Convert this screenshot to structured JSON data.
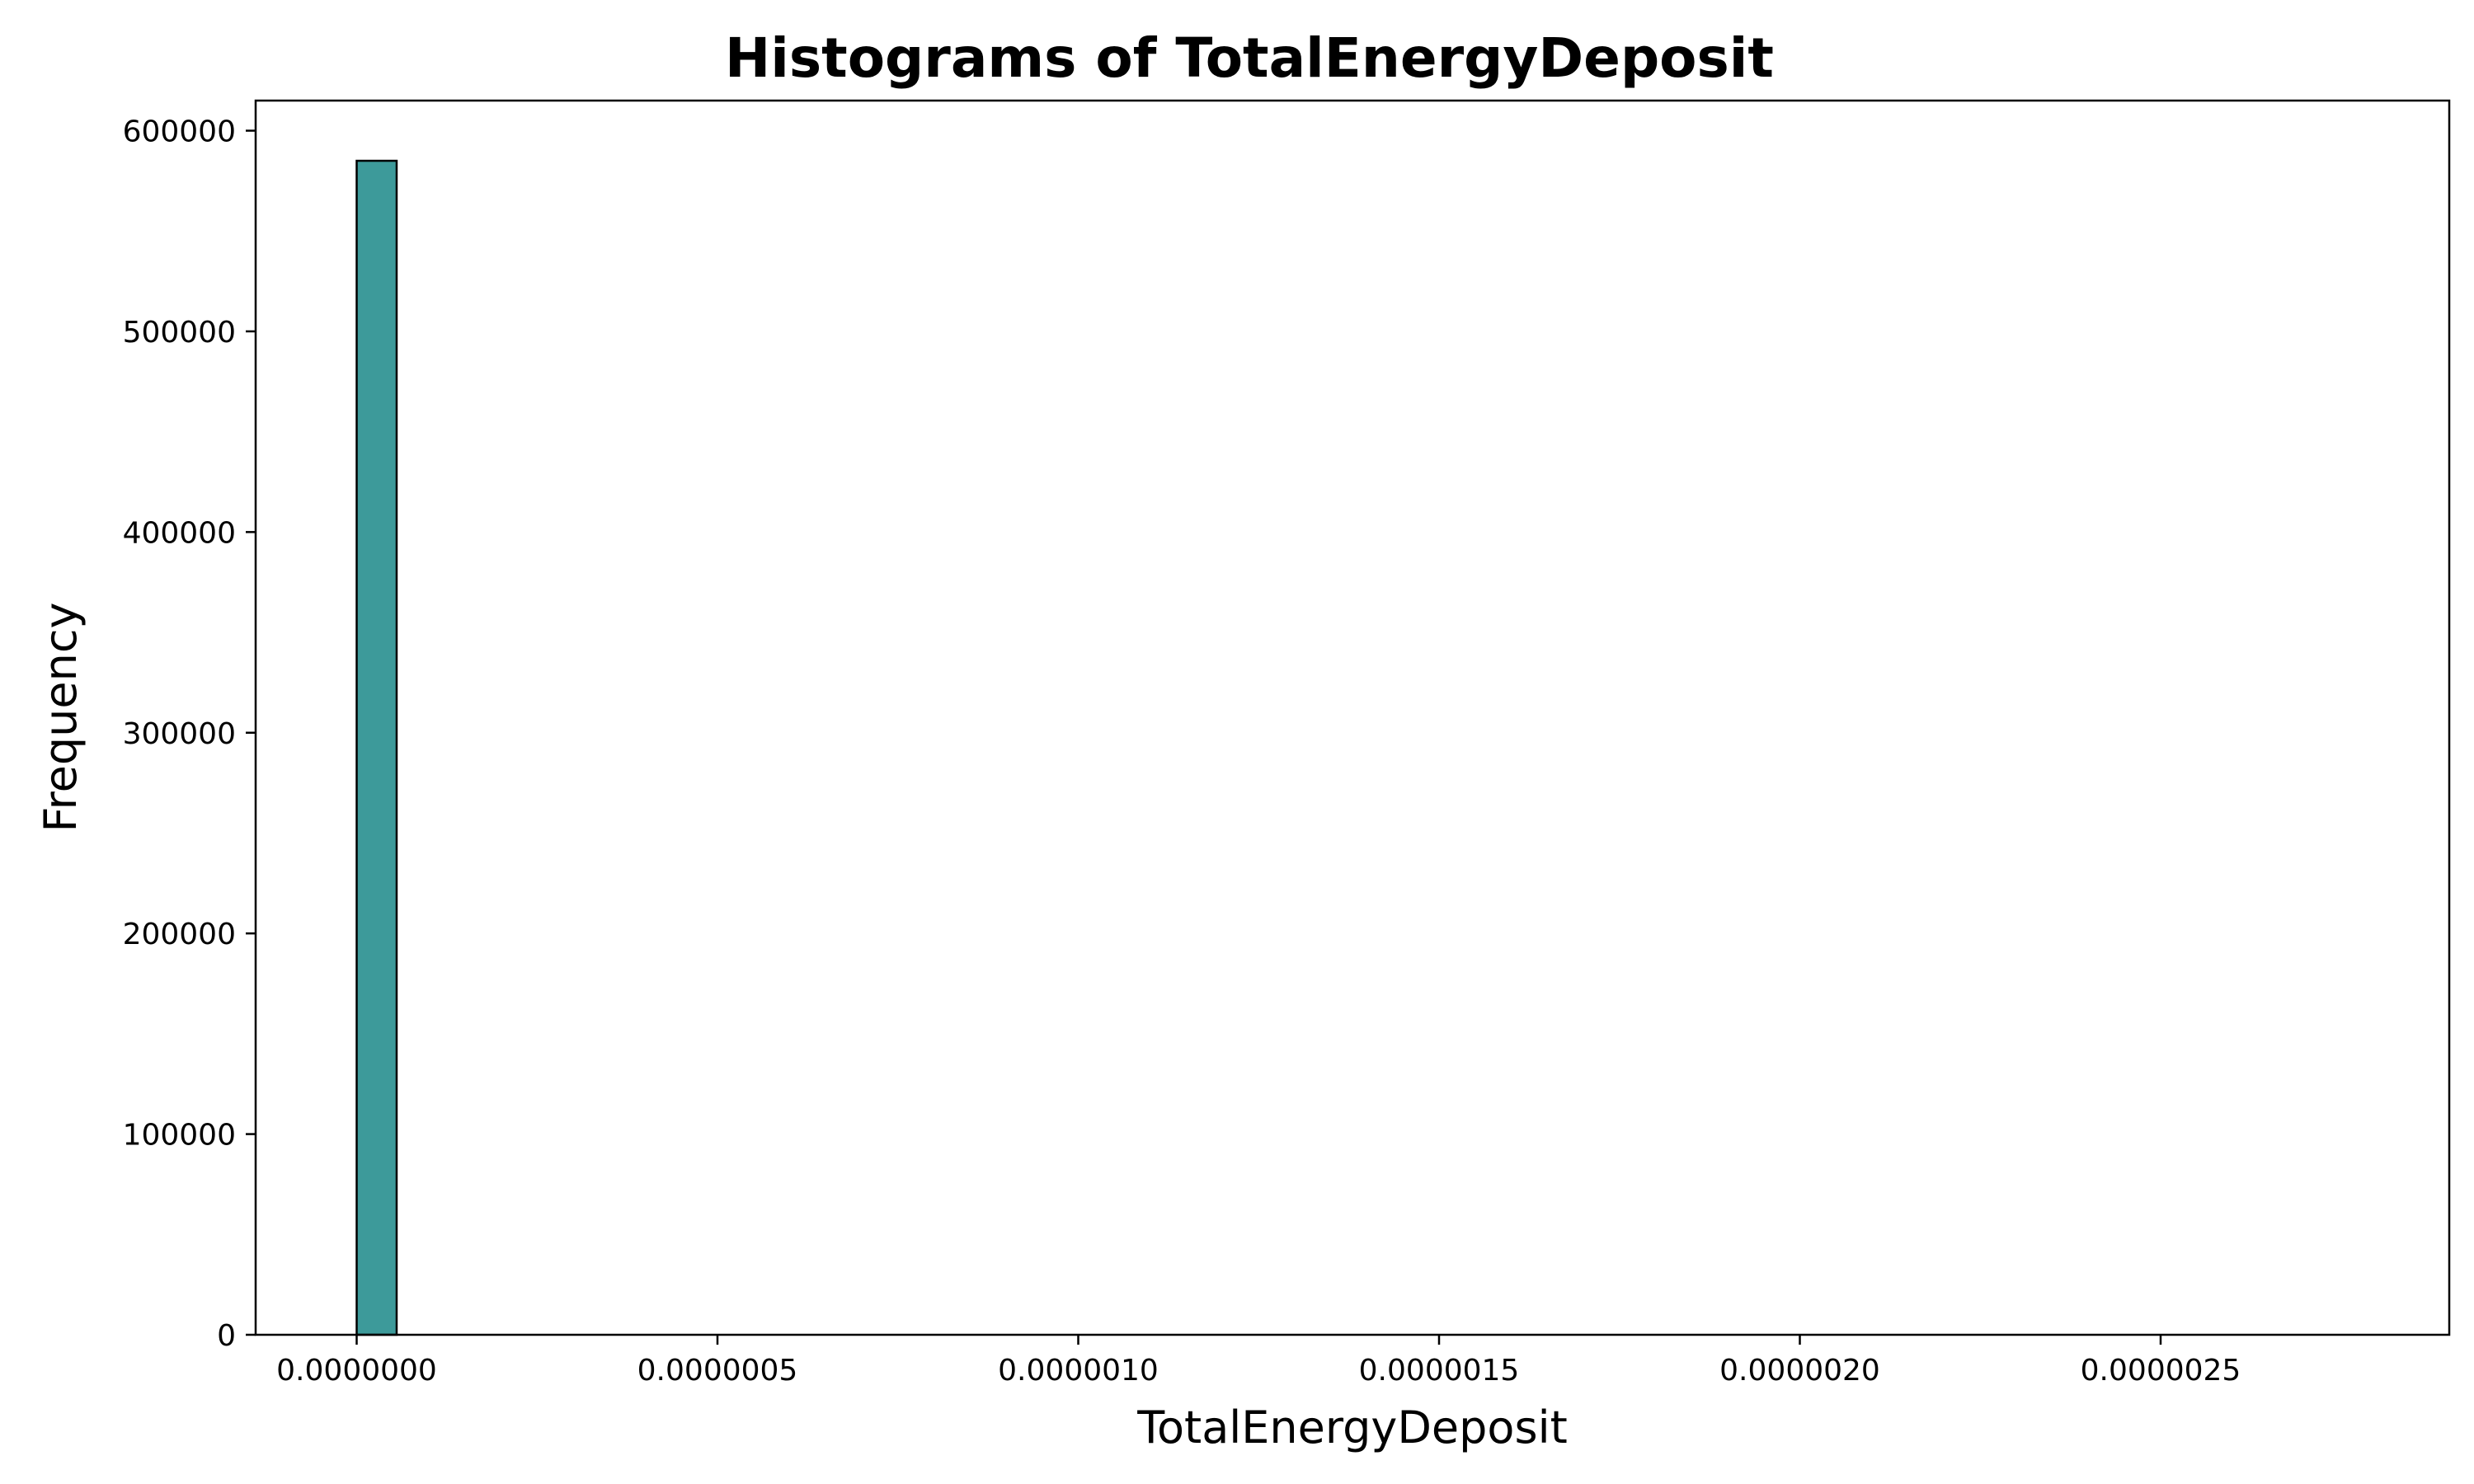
{
  "chart_data": {
    "type": "bar",
    "title": "Histograms of TotalEnergyDeposit",
    "xlabel": "TotalEnergyDeposit",
    "ylabel": "Frequency",
    "xlim": [
      -1.4e-07,
      2.9e-06
    ],
    "ylim": [
      0,
      615000
    ],
    "xticks": [
      0,
      5e-07,
      1e-06,
      1.5e-06,
      2e-06,
      2.5e-06
    ],
    "xtick_labels": [
      "0.0000000",
      "0.0000005",
      "0.0000010",
      "0.0000015",
      "0.0000020",
      "0.0000025"
    ],
    "yticks": [
      0,
      100000,
      200000,
      300000,
      400000,
      500000,
      600000
    ],
    "ytick_labels": [
      "0",
      "100000",
      "200000",
      "300000",
      "400000",
      "500000",
      "600000"
    ],
    "bins": {
      "start": 0,
      "end": 2.77e-06,
      "count": 50
    },
    "counts": [
      585000,
      1,
      0,
      0,
      0,
      0,
      0,
      0,
      0,
      0,
      0,
      0,
      0,
      0,
      0,
      0,
      0,
      0,
      0,
      0,
      0,
      0,
      0,
      0,
      0,
      0,
      0,
      0,
      0,
      0,
      0,
      0,
      0,
      0,
      0,
      0,
      0,
      0,
      0,
      0,
      0,
      0,
      0,
      0,
      0,
      0,
      0,
      0,
      0,
      1
    ],
    "bar_color": "#3d9a9a",
    "edge_color": "#000000",
    "grid": false,
    "legend": false
  }
}
